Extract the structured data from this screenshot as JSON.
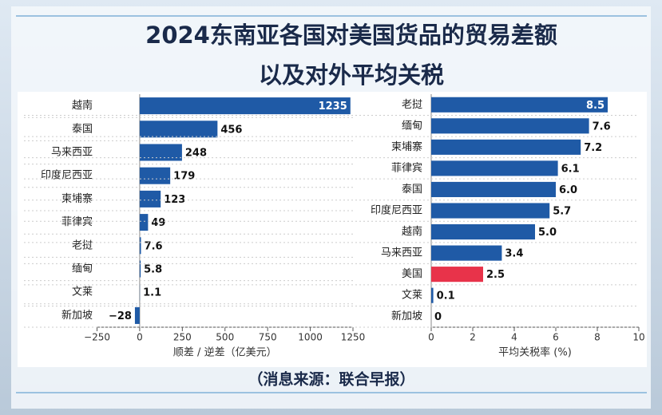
{
  "title": [
    "2024东南亚各国对美国货品的贸易差额",
    "以及对外平均关税"
  ],
  "source": "（消息来源：联合早报）",
  "chart_data": [
    {
      "type": "hbar",
      "xlabel": "顺差 / 逆差（亿美元）",
      "categories": [
        "越南",
        "泰国",
        "马来西亚",
        "印度尼西亚",
        "柬埔寨",
        "菲律宾",
        "老挝",
        "缅甸",
        "文莱",
        "新加坡"
      ],
      "values": [
        1235,
        456,
        248,
        179,
        123,
        49,
        7.6,
        5.8,
        1.1,
        -28
      ],
      "value_labels": [
        "1235",
        "456",
        "248",
        "179",
        "123",
        "49",
        "7.6",
        "5.8",
        "1.1",
        "−28"
      ],
      "colors": [
        "#1f5aa6",
        "#1f5aa6",
        "#1f5aa6",
        "#1f5aa6",
        "#1f5aa6",
        "#1f5aa6",
        "#1f5aa6",
        "#1f5aa6",
        "#1f5aa6",
        "#1f5aa6"
      ],
      "xlim": [
        -250,
        1250
      ],
      "xticks": [
        {
          "value": -250,
          "label": "−250"
        },
        0,
        250,
        500,
        750,
        1000,
        1250
      ]
    },
    {
      "type": "hbar",
      "xlabel": "平均关税率 (%)",
      "categories": [
        "老挝",
        "缅甸",
        "柬埔寨",
        "菲律宾",
        "泰国",
        "印度尼西亚",
        "越南",
        "马来西亚",
        "美国",
        "文莱",
        "新加坡"
      ],
      "values": [
        8.5,
        7.6,
        7.2,
        6.1,
        6.0,
        5.7,
        5.0,
        3.4,
        2.5,
        0.1,
        0
      ],
      "value_labels": [
        "8.5",
        "7.6",
        "7.2",
        "6.1",
        "6.0",
        "5.7",
        "5.0",
        "3.4",
        "2.5",
        "0.1",
        "0"
      ],
      "colors": [
        "#1f5aa6",
        "#1f5aa6",
        "#1f5aa6",
        "#1f5aa6",
        "#1f5aa6",
        "#1f5aa6",
        "#1f5aa6",
        "#1f5aa6",
        "#e8334a",
        "#1f5aa6",
        "#1f5aa6"
      ],
      "xlim": [
        0,
        10
      ],
      "xticks": [
        0,
        2,
        4,
        6,
        8,
        10
      ]
    }
  ]
}
